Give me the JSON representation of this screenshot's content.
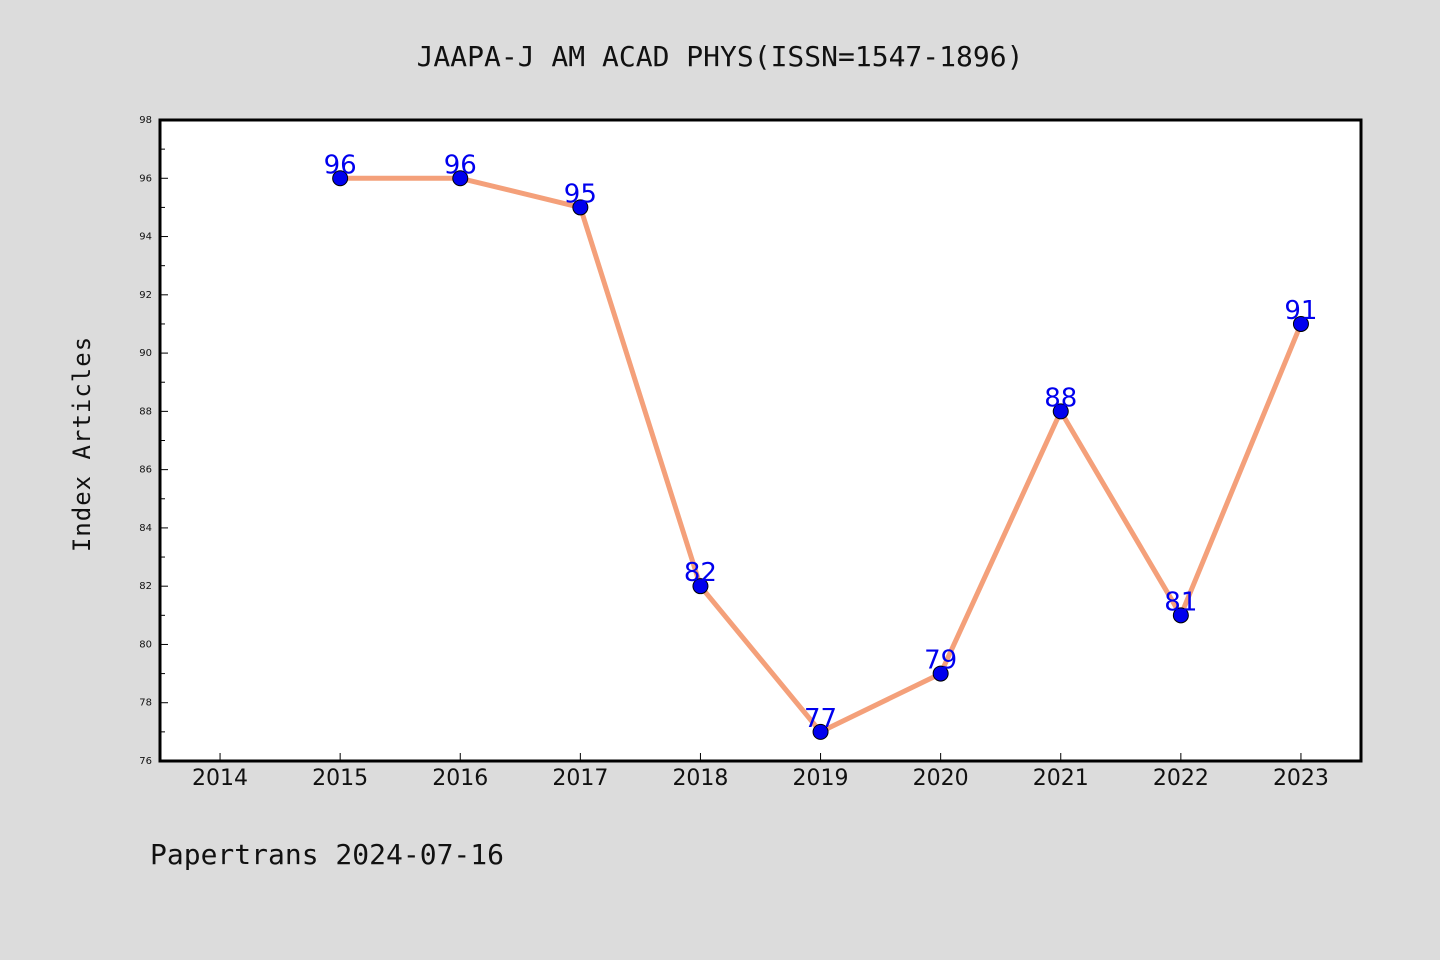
{
  "chart_data": {
    "type": "line",
    "title": "JAAPA-J AM ACAD PHYS(ISSN=1547-1896)",
    "xlabel": "",
    "ylabel": "Index Articles",
    "x_ticks": [
      "2014",
      "2015",
      "2016",
      "2017",
      "2018",
      "2019",
      "2020",
      "2021",
      "2022",
      "2023"
    ],
    "y_ticks": [
      "76",
      "78",
      "80",
      "82",
      "84",
      "86",
      "88",
      "90",
      "92",
      "94",
      "96",
      "98"
    ],
    "ylim": [
      76,
      98
    ],
    "xlim": [
      2013.5,
      2023.5
    ],
    "grid": false,
    "series": [
      {
        "x": [
          2015,
          2016,
          2017,
          2018,
          2019,
          2020,
          2021,
          2022,
          2023
        ],
        "values": [
          96,
          96,
          95,
          82,
          77,
          79,
          88,
          81,
          91
        ],
        "labels": [
          "96",
          "96",
          "95",
          "82",
          "77",
          "79",
          "88",
          "81",
          "91"
        ]
      }
    ],
    "colors": {
      "line": "#f4a07a",
      "marker": "#0000ee",
      "label": "#0000ee",
      "background": "#dcdcdc",
      "plot_background": "#ffffff"
    }
  },
  "footer": "Papertrans 2024-07-16"
}
